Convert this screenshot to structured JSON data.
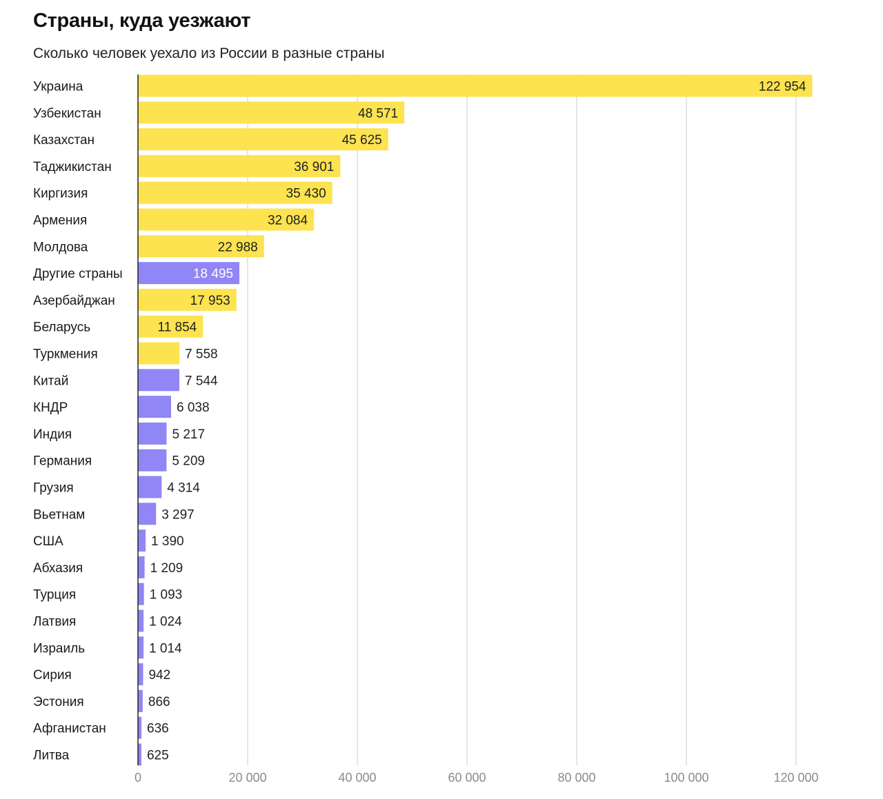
{
  "title": "Страны, куда уезжают",
  "subtitle": "Сколько человек уехало из России в разные страны",
  "colors": {
    "yellow": "#FCE34F",
    "purple": "#9186F5",
    "grid": "#DDDDDD",
    "axis": "#222222",
    "tick_text": "#8A8A8A",
    "value_text_dark": "#222222",
    "value_text_light": "#FFFFFF"
  },
  "chart_data": {
    "type": "bar",
    "orientation": "horizontal",
    "xlim": [
      0,
      120000
    ],
    "xticks": [
      {
        "value": 0,
        "label": "0"
      },
      {
        "value": 20000,
        "label": "20 000"
      },
      {
        "value": 40000,
        "label": "40 000"
      },
      {
        "value": 60000,
        "label": "60 000"
      },
      {
        "value": 80000,
        "label": "80 000"
      },
      {
        "value": 100000,
        "label": "100 000"
      },
      {
        "value": 120000,
        "label": "120 000"
      }
    ],
    "grid": true,
    "legend": "none",
    "bars": [
      {
        "category": "Украина",
        "value": 122954,
        "label": "122 954",
        "color": "yellow"
      },
      {
        "category": "Узбекистан",
        "value": 48571,
        "label": "48 571",
        "color": "yellow"
      },
      {
        "category": "Казахстан",
        "value": 45625,
        "label": "45 625",
        "color": "yellow"
      },
      {
        "category": "Таджикистан",
        "value": 36901,
        "label": "36 901",
        "color": "yellow"
      },
      {
        "category": "Киргизия",
        "value": 35430,
        "label": "35 430",
        "color": "yellow"
      },
      {
        "category": "Армения",
        "value": 32084,
        "label": "32 084",
        "color": "yellow"
      },
      {
        "category": "Молдова",
        "value": 22988,
        "label": "22 988",
        "color": "yellow"
      },
      {
        "category": "Другие страны",
        "value": 18495,
        "label": "18 495",
        "color": "purple"
      },
      {
        "category": "Азербайджан",
        "value": 17953,
        "label": "17 953",
        "color": "yellow"
      },
      {
        "category": "Беларусь",
        "value": 11854,
        "label": "11 854",
        "color": "yellow"
      },
      {
        "category": "Туркмения",
        "value": 7558,
        "label": "7 558",
        "color": "yellow"
      },
      {
        "category": "Китай",
        "value": 7544,
        "label": "7 544",
        "color": "purple"
      },
      {
        "category": "КНДР",
        "value": 6038,
        "label": "6 038",
        "color": "purple"
      },
      {
        "category": "Индия",
        "value": 5217,
        "label": "5 217",
        "color": "purple"
      },
      {
        "category": "Германия",
        "value": 5209,
        "label": "5 209",
        "color": "purple"
      },
      {
        "category": "Грузия",
        "value": 4314,
        "label": "4 314",
        "color": "purple"
      },
      {
        "category": "Вьетнам",
        "value": 3297,
        "label": "3 297",
        "color": "purple"
      },
      {
        "category": "США",
        "value": 1390,
        "label": "1 390",
        "color": "purple"
      },
      {
        "category": "Абхазия",
        "value": 1209,
        "label": "1 209",
        "color": "purple"
      },
      {
        "category": "Турция",
        "value": 1093,
        "label": "1 093",
        "color": "purple"
      },
      {
        "category": "Латвия",
        "value": 1024,
        "label": "1 024",
        "color": "purple"
      },
      {
        "category": "Израиль",
        "value": 1014,
        "label": "1 014",
        "color": "purple"
      },
      {
        "category": "Сирия",
        "value": 942,
        "label": "942",
        "color": "purple"
      },
      {
        "category": "Эстония",
        "value": 866,
        "label": "866",
        "color": "purple"
      },
      {
        "category": "Афганистан",
        "value": 636,
        "label": "636",
        "color": "purple"
      },
      {
        "category": "Литва",
        "value": 625,
        "label": "625",
        "color": "purple"
      }
    ]
  }
}
